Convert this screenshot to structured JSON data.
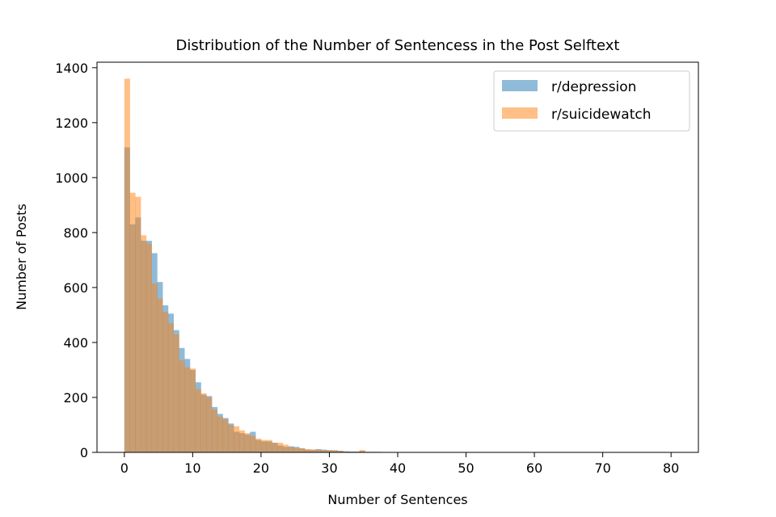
{
  "chart_data": {
    "type": "histogram",
    "title": "Distribution of the Number of Sentencess in the Post Selftext",
    "xlabel": "Number of Sentences",
    "ylabel": "Number of Posts",
    "xlim": [
      -4,
      84
    ],
    "ylim": [
      0,
      1420
    ],
    "xticks": [
      0,
      10,
      20,
      30,
      40,
      50,
      60,
      70,
      80
    ],
    "yticks": [
      0,
      200,
      400,
      600,
      800,
      1000,
      1200,
      1400
    ],
    "grid": false,
    "legend_position": "upper right",
    "bin_edges_start": 0,
    "bin_width": 0.8,
    "series": [
      {
        "name": "r/depression",
        "color": "#1f77b4",
        "alpha": 0.5,
        "values": [
          1110,
          830,
          855,
          770,
          770,
          725,
          620,
          535,
          505,
          445,
          380,
          340,
          300,
          255,
          210,
          205,
          165,
          140,
          125,
          105,
          75,
          70,
          65,
          75,
          45,
          40,
          40,
          35,
          25,
          20,
          22,
          20,
          15,
          10,
          10,
          12,
          10,
          8,
          8,
          6,
          4,
          3,
          3,
          5,
          2,
          2,
          2,
          1,
          1,
          1,
          1,
          1,
          0,
          0,
          0,
          0,
          0,
          0,
          0,
          0,
          0,
          0,
          0,
          0,
          0,
          0,
          0,
          0,
          0,
          0,
          0,
          0,
          0,
          0,
          0,
          0,
          0,
          0,
          0,
          0,
          0,
          0,
          0,
          0,
          0,
          0,
          0,
          0,
          0,
          0,
          0,
          0,
          0,
          0,
          0,
          0,
          0,
          0,
          0,
          0
        ]
      },
      {
        "name": "r/suicidewatch",
        "color": "#ff7f0e",
        "alpha": 0.5,
        "values": [
          1360,
          945,
          930,
          790,
          760,
          615,
          560,
          510,
          470,
          430,
          335,
          310,
          305,
          230,
          215,
          200,
          155,
          130,
          120,
          100,
          95,
          80,
          70,
          60,
          50,
          45,
          45,
          35,
          35,
          28,
          20,
          15,
          15,
          12,
          10,
          10,
          8,
          8,
          6,
          6,
          3,
          3,
          3,
          8,
          2,
          2,
          1,
          1,
          1,
          1,
          1,
          0,
          0,
          0,
          0,
          0,
          0,
          0,
          0,
          0,
          0,
          0,
          0,
          0,
          0,
          0,
          0,
          0,
          0,
          0,
          0,
          0,
          0,
          0,
          0,
          0,
          0,
          0,
          0,
          0,
          0,
          0,
          0,
          0,
          0,
          0,
          0,
          0,
          0,
          0,
          0,
          0,
          0,
          0,
          0,
          0,
          0,
          0,
          0,
          0
        ]
      }
    ]
  }
}
